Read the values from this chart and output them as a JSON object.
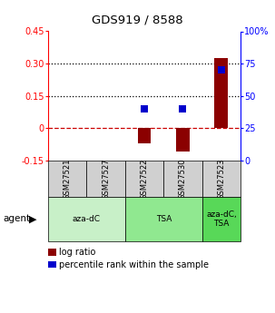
{
  "title": "GDS919 / 8588",
  "samples": [
    "GSM27521",
    "GSM27527",
    "GSM27522",
    "GSM27530",
    "GSM27523"
  ],
  "log_ratios": [
    0.0,
    0.0,
    -0.07,
    -0.11,
    0.325
  ],
  "percentile_ranks_pct": [
    null,
    null,
    40,
    40,
    70
  ],
  "ylim_left": [
    -0.15,
    0.45
  ],
  "ylim_right": [
    0,
    100
  ],
  "yticks_left": [
    -0.15,
    0.0,
    0.15,
    0.3,
    0.45
  ],
  "yticks_right": [
    0,
    25,
    50,
    75,
    100
  ],
  "ytick_labels_left": [
    "-0.15",
    "0",
    "0.15",
    "0.30",
    "0.45"
  ],
  "ytick_labels_right": [
    "0",
    "25",
    "50",
    "75",
    "100%"
  ],
  "hlines": [
    0.0,
    0.15,
    0.3
  ],
  "hline_styles": [
    "dashed",
    "dotted",
    "dotted"
  ],
  "hline_colors": [
    "#cc0000",
    "black",
    "black"
  ],
  "agent_groups": [
    {
      "label": "aza-dC",
      "cols": [
        0,
        1
      ],
      "color": "#c8f0c8"
    },
    {
      "label": "TSA",
      "cols": [
        2,
        3
      ],
      "color": "#90e890"
    },
    {
      "label": "aza-dC,\nTSA",
      "cols": [
        4
      ],
      "color": "#58d858"
    }
  ],
  "bar_color": "#8b0000",
  "dot_color": "#0000cc",
  "bar_width": 0.35,
  "dot_size": 40,
  "sample_bg_color": "#d0d0d0",
  "legend_red_label": "log ratio",
  "legend_blue_label": "percentile rank within the sample",
  "agent_label": "agent"
}
